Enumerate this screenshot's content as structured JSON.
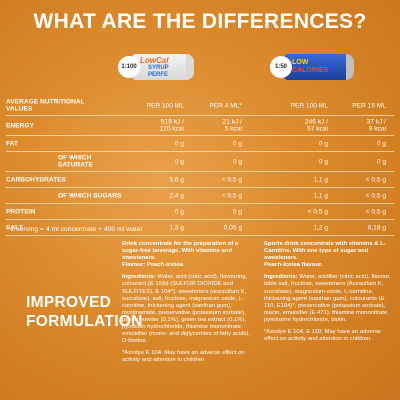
{
  "title": "WHAT ARE THE DIFFERENCES?",
  "products": [
    {
      "ratio": "1:100",
      "brand_line1": "LowCal",
      "brand_line2": "SYRUP PERFE",
      "colors": {
        "label_main": "#e86a1a",
        "label_sub": "#2a6fd1"
      }
    },
    {
      "ratio": "1:50",
      "brand_line1": "LOW",
      "brand_line2": "CALORIES",
      "colors": {
        "label_main": "#ffd800",
        "label_sub": "#ff4040"
      }
    }
  ],
  "table": {
    "header": {
      "label": "AVERAGE NUTRITIONAL\nVALUES",
      "c1": "PER 100 ML",
      "c2": "PER 4 ML*",
      "c3": "PER 100 ML",
      "c4": "PER 15 ML"
    },
    "rows": [
      {
        "label": "ENERGY",
        "c1": "518 kJ /\n120 kcal",
        "c2": "21 kJ /\n5 kcal",
        "c3": "246 kJ /\n57 kcal",
        "c4": "37 kJ /\n9 kcal",
        "sub": false
      },
      {
        "label": "FAT",
        "c1": "0 g",
        "c2": "0 g",
        "c3": "0 g",
        "c4": "0 g",
        "sub": false
      },
      {
        "label": "OF WHICH\nSATURATE",
        "c1": "0 g",
        "c2": "0 g",
        "c3": "0 g",
        "c4": "0 g",
        "sub": true
      },
      {
        "label": "CARBOHYDRATES",
        "c1": "5,6 g",
        "c2": "< 0,5 g",
        "c3": "1,1 g",
        "c4": "< 0,5 g",
        "sub": false
      },
      {
        "label": "OF WHICH SUGARS",
        "c1": "2,4 g",
        "c2": "< 0,5 g",
        "c3": "1,1 g",
        "c4": "< 0,5 g",
        "sub": true
      },
      {
        "label": "PROTEIN",
        "c1": "0 g",
        "c2": "0 g",
        "c3": "< 0,5 g",
        "c4": "< 0,5 g",
        "sub": false
      },
      {
        "label": "SALT",
        "c1": "1,3 g",
        "c2": "0,05 g",
        "c3": "1,2 g",
        "c4": "0,18 g",
        "sub": false
      }
    ]
  },
  "serving_note": "* 1 serving = 4 ml concentrate + 400 ml water",
  "improved_label": "IMPROVED\nFORMULATION",
  "left_col": {
    "intro": "Drink concentrate for the preparation of a sugar-free beverage. With vitamins and sweeteners.\nFlavour: Peach-icetea.",
    "ingredients_heading": "Ingredients:",
    "ingredients": " Water, acid (citric acid), flavouring, colourant (E 150d (SULFUR DIOXIDE and SULFITES), E 104*), sweeteners (acesulfam K, sucralose), salt, fructose, magnesium oxide, L-carnitine, thickening agent (xanthan gum), nicotinamide, preservative (potassium sorbate), peach powder (0,1%), green tea extract (0,1%), pyridoxin hydrochloride, thiamine mononitrate, emulsifier (mono- and diglycerides of fatty acids), D-biotine.",
    "note": "*Azodye E 104: May have an adverse effect on activity and attention in children"
  },
  "right_col": {
    "intro": "Sports drink concentrate with vitamins & L-Carnitine. With one type of sugar and sweeteners.\nPeach-Icetea flavour.",
    "ingredients_heading": "Ingredients:",
    "ingredients": " Water, acidifier (citric acid), flavour, table salt, fructose, sweeteners (Acesulfam K, sucralose), magnesium-oxide, L-carnitine, thickening agent (xanthan gum), colourants (E 110, E104)*, preservative (potassium sorbate), niacin, emulsifier (E 471), thiamine mononitrate, pyridoxine hydrochloride, biotin.",
    "note": "*Azodye E 104, E 110: May have an adverse effect on activity and attention in children."
  }
}
